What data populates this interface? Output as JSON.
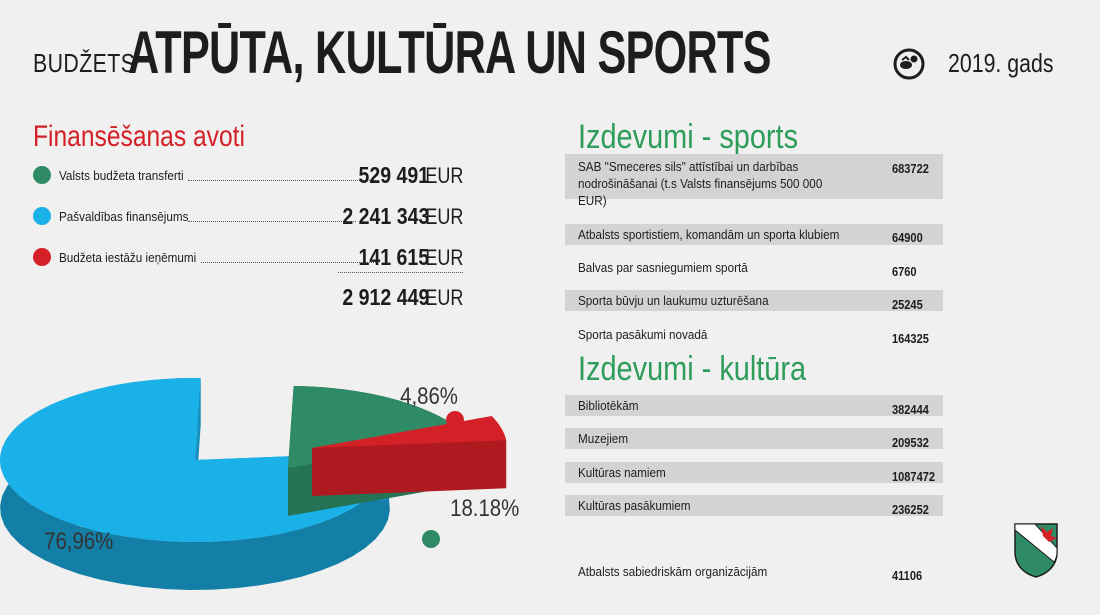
{
  "header": {
    "prefix": "BUDŽETS",
    "title": "ATPŪTA, KULTŪRA UN SPORTS",
    "year": "2019. gads",
    "icon": "ball-icon"
  },
  "funding": {
    "title": "Finansēšanas avoti",
    "items": [
      {
        "label": "Valsts budžeta transferti",
        "value": "529 491",
        "unit": "EUR",
        "color": "#2e8b66"
      },
      {
        "label": "Pašvaldības finansējums",
        "value": "2 241 343",
        "unit": "EUR",
        "color": "#1ab0e8"
      },
      {
        "label": "Budžeta iestāžu ieņēmumi",
        "value": "141 615",
        "unit": "EUR",
        "color": "#d42027"
      }
    ],
    "total": {
      "value": "2 912 449",
      "unit": "EUR"
    }
  },
  "chart_data": {
    "type": "pie",
    "title": "",
    "slices": [
      {
        "name": "Pašvaldības finansējums",
        "value": 76.96,
        "label": "76,96%",
        "color": "#1ab0e8"
      },
      {
        "name": "Valsts budžeta transferti",
        "value": 18.18,
        "label": "18.18%",
        "color": "#2e8b66"
      },
      {
        "name": "Budžeta iestāžu ieņēmumi",
        "value": 4.86,
        "label": "4,86%",
        "color": "#d42027"
      }
    ]
  },
  "sports": {
    "title": "Izdevumi - sports",
    "items": [
      {
        "label": "SAB \"Smeceres sils\" attīstībai un darbības nodrošināšanai (t.s Valsts finansējums 500 000 EUR)",
        "value": "683722"
      },
      {
        "label": "Atbalsts sportistiem, komandām un sporta klubiem",
        "value": "64900"
      },
      {
        "label": "Balvas par sasniegumiem sportā",
        "value": "6760"
      },
      {
        "label": "Sporta būvju un laukumu uzturēšana",
        "value": "25245"
      },
      {
        "label": "Sporta pasākumi novadā",
        "value": "164325"
      }
    ]
  },
  "culture": {
    "title": "Izdevumi - kultūra",
    "items": [
      {
        "label": "Bibliotēkām",
        "value": "382444"
      },
      {
        "label": "Muzejiem",
        "value": "209532"
      },
      {
        "label": "Kultūras namiem",
        "value": "1087472"
      },
      {
        "label": "Kultūras pasākumiem",
        "value": "236252"
      }
    ],
    "extra": {
      "label": "Atbalsts sabiedriskām organizācijām",
      "value": "41106"
    }
  },
  "crest": {
    "icon": "coat-of-arms-icon",
    "colors": [
      "#2e8b66",
      "#d42027",
      "#ffffff"
    ]
  }
}
